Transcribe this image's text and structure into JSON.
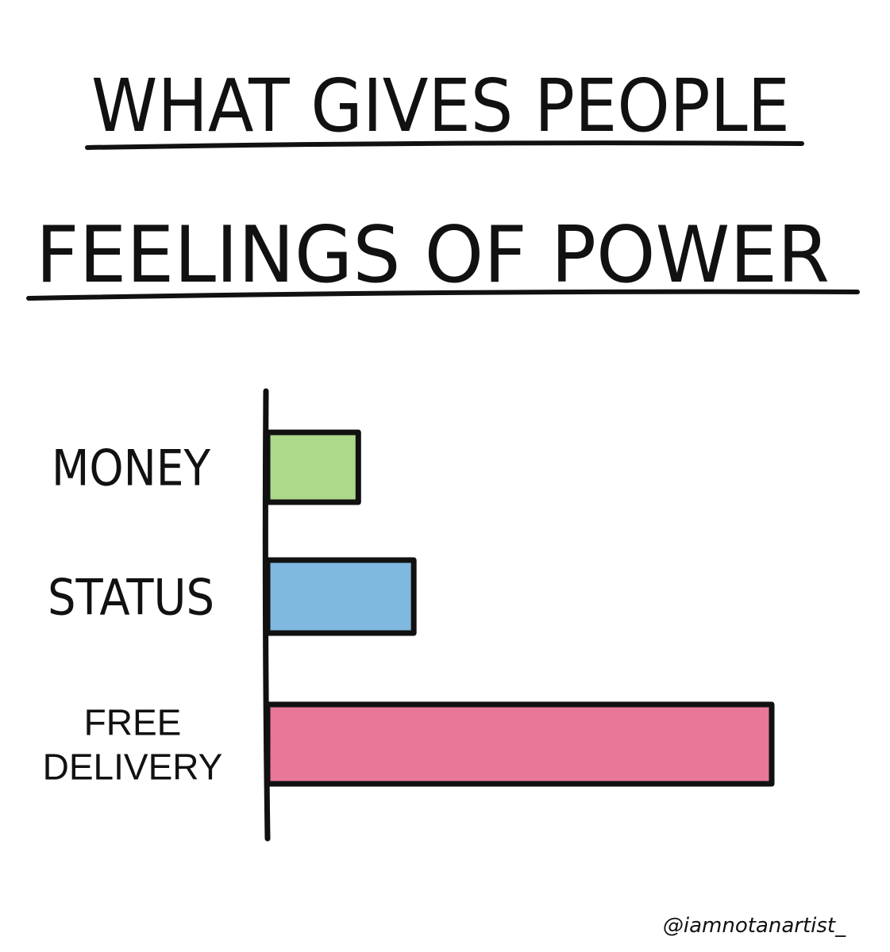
{
  "chart_data": {
    "type": "bar",
    "orientation": "horizontal",
    "title_lines": [
      "WHAT GIVES PEOPLE",
      "FEELINGS OF POWER"
    ],
    "categories": [
      "MONEY",
      "STATUS",
      "FREE DELIVERY"
    ],
    "category_lines": [
      [
        "MONEY"
      ],
      [
        "STATUS"
      ],
      [
        "FREE",
        "DELIVERY"
      ]
    ],
    "values": [
      18,
      29,
      100
    ],
    "xlim": [
      0,
      100
    ],
    "grid": false,
    "colors": [
      "#acd98a",
      "#80b9e0",
      "#e87898"
    ],
    "outline_color": "#111111"
  },
  "credit": "@iamnotanartist_"
}
